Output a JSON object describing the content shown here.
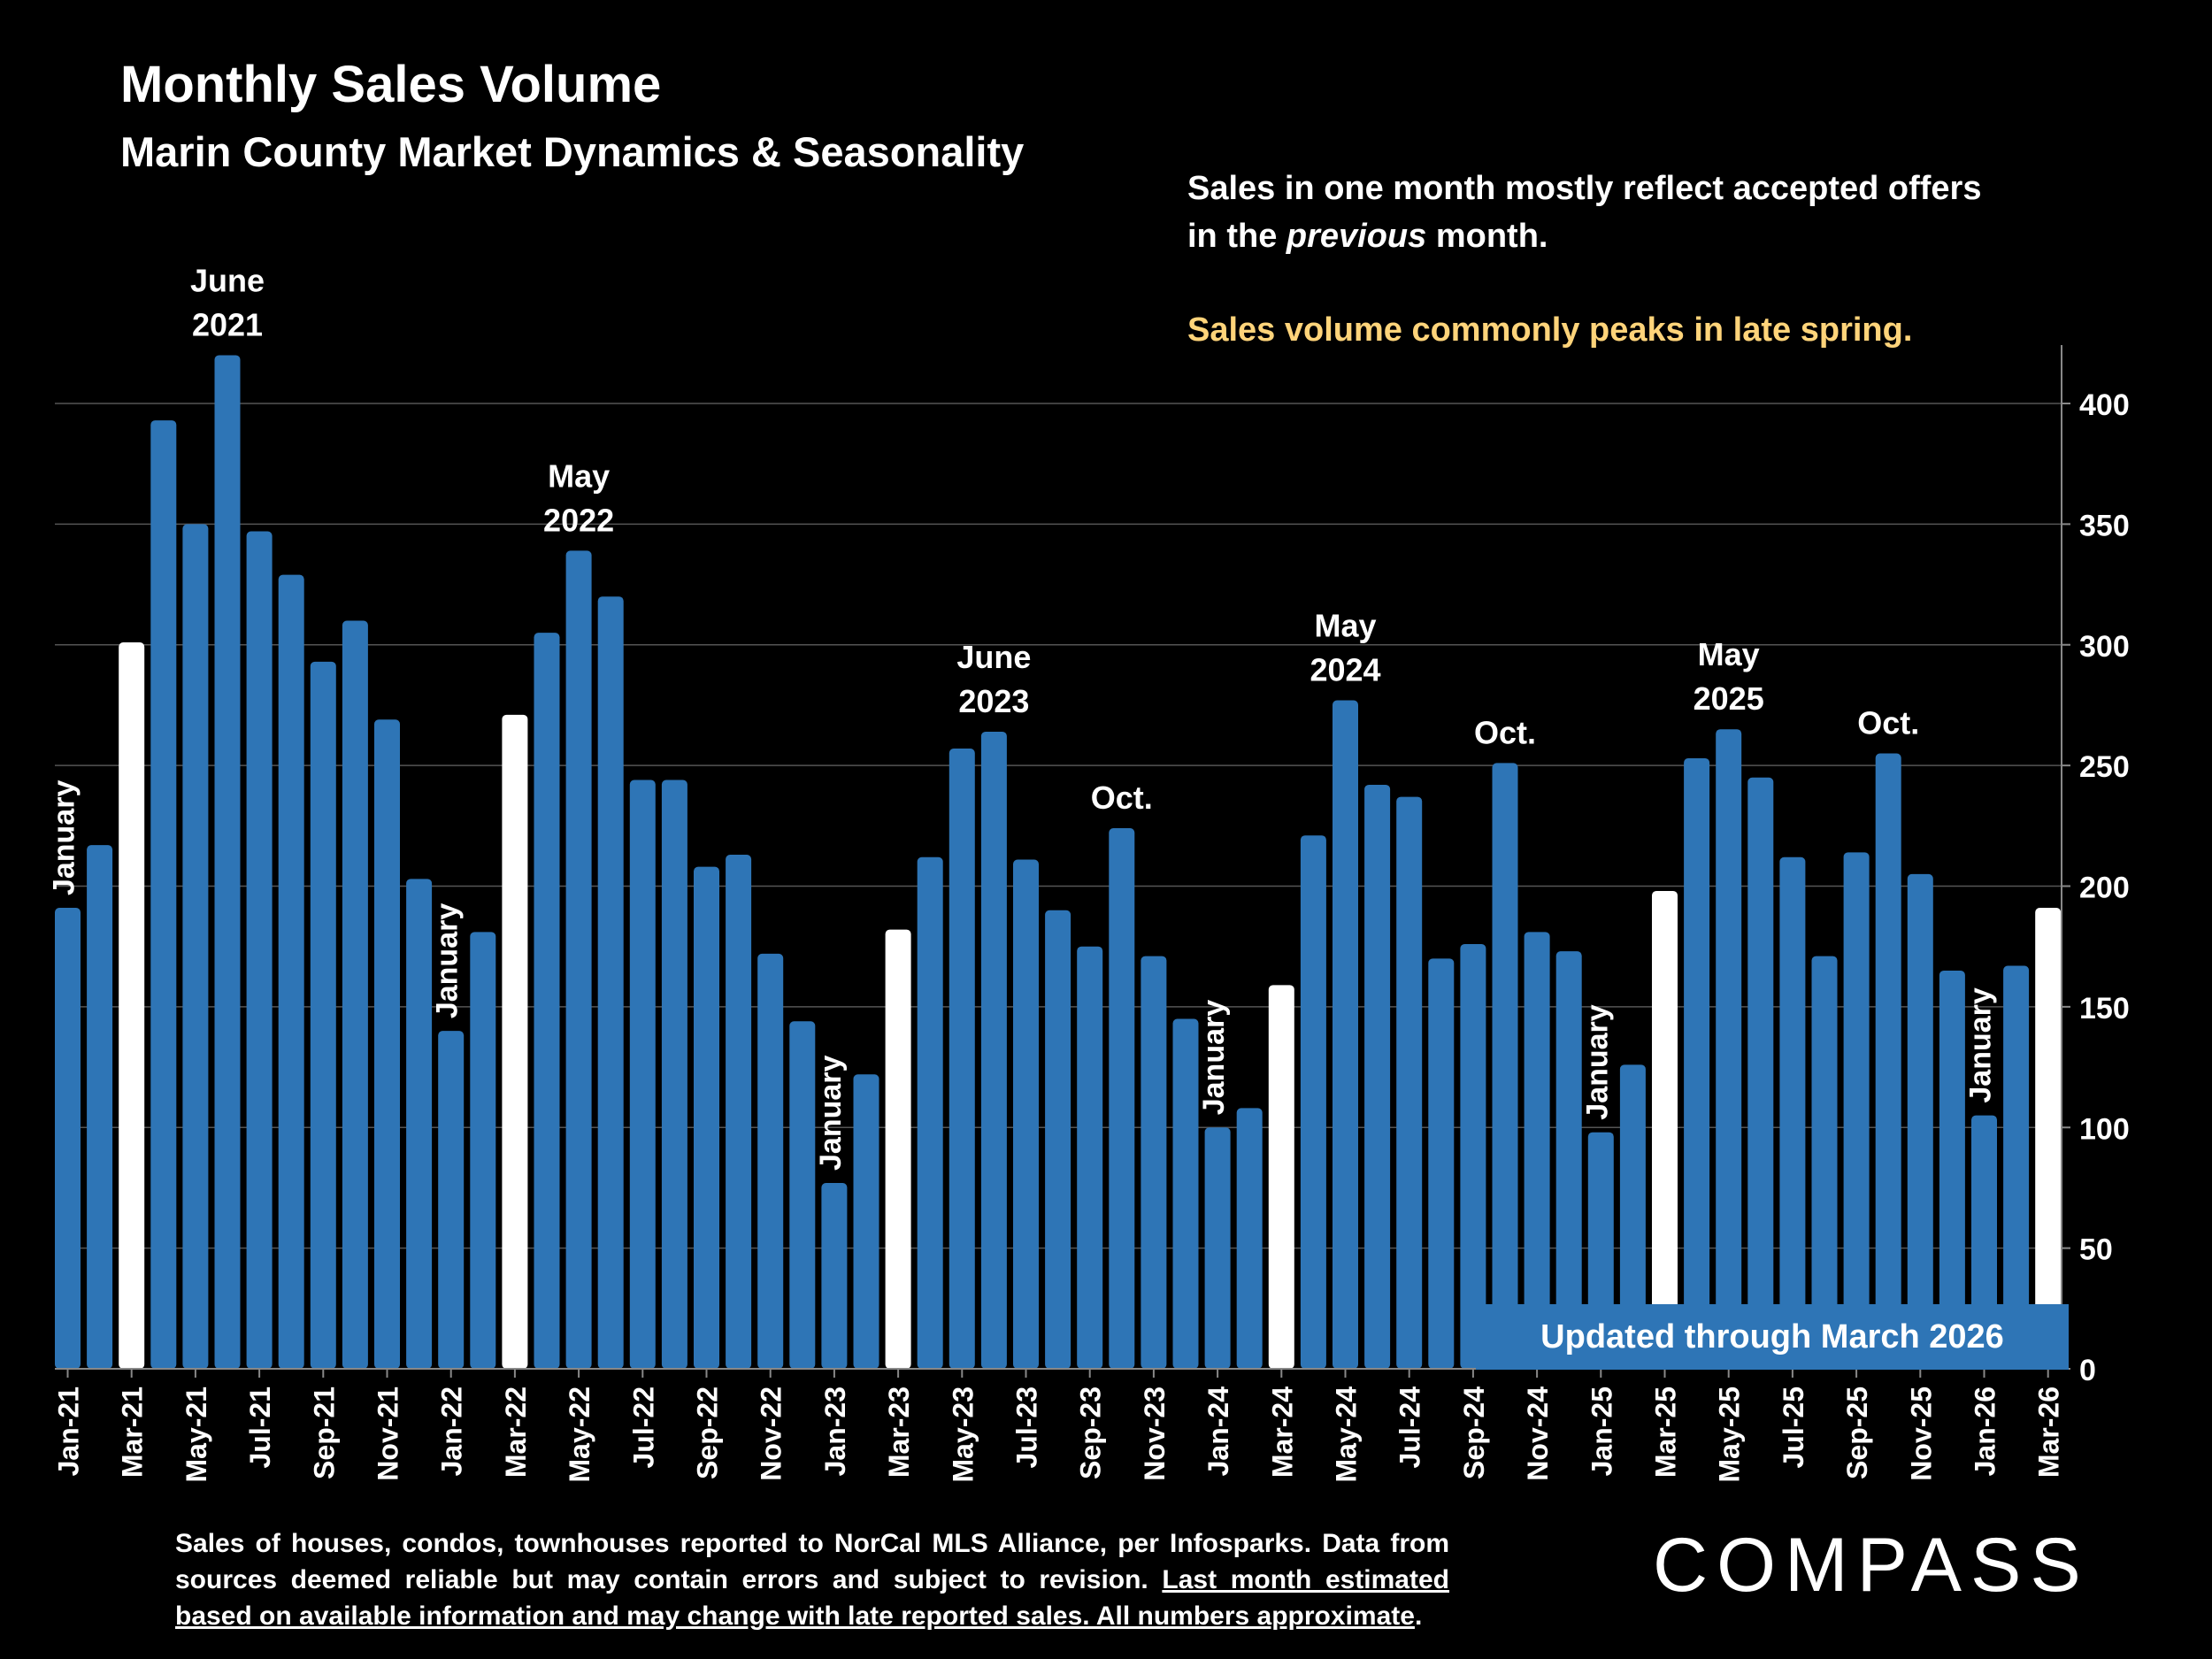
{
  "header": {
    "title": "Monthly Sales Volume",
    "subtitle": "Marin County Market Dynamics & Seasonality"
  },
  "notes": {
    "line1_part1": "Sales in one month mostly reflect accepted offers",
    "line1_part2_pre": "in the ",
    "line1_part2_em": "previous",
    "line1_part2_post": " month.",
    "highlight": "Sales volume commonly peaks in late spring."
  },
  "updated_label": "Updated through March 2026",
  "footnote": {
    "plain": "Sales of houses, condos, townhouses reported to NorCal MLS Alliance, per Infosparks. Data from sources deemed reliable but may contain errors and subject to revision. ",
    "underlined": "Last month estimated based on available information and may change with late reported sales. All numbers approximate",
    "end": "."
  },
  "logo_text": "COMPASS",
  "colors": {
    "bar": "#2e75b6",
    "highlight_bar": "#ffffff",
    "note_highlight": "#ffd47a",
    "background": "#000000"
  },
  "chart_data": {
    "type": "bar",
    "title": "Monthly Sales Volume",
    "ylim": [
      0,
      420
    ],
    "yticks": [
      0,
      50,
      100,
      150,
      200,
      250,
      300,
      350,
      400
    ],
    "grid": true,
    "months": [
      "Jan-21",
      "Feb-21",
      "Mar-21",
      "Apr-21",
      "May-21",
      "Jun-21",
      "Jul-21",
      "Aug-21",
      "Sep-21",
      "Oct-21",
      "Nov-21",
      "Dec-21",
      "Jan-22",
      "Feb-22",
      "Mar-22",
      "Apr-22",
      "May-22",
      "Jun-22",
      "Jul-22",
      "Aug-22",
      "Sep-22",
      "Oct-22",
      "Nov-22",
      "Dec-22",
      "Jan-23",
      "Feb-23",
      "Mar-23",
      "Apr-23",
      "May-23",
      "Jun-23",
      "Jul-23",
      "Aug-23",
      "Sep-23",
      "Oct-23",
      "Nov-23",
      "Dec-23",
      "Jan-24",
      "Feb-24",
      "Mar-24",
      "Apr-24",
      "May-24",
      "Jun-24",
      "Jul-24",
      "Aug-24",
      "Sep-24",
      "Oct-24",
      "Nov-24",
      "Dec-24",
      "Jan-25",
      "Feb-25",
      "Mar-25",
      "Apr-25",
      "May-25",
      "Jun-25",
      "Jul-25",
      "Aug-25",
      "Sep-25",
      "Oct-25",
      "Nov-25",
      "Dec-25",
      "Jan-26",
      "Feb-26",
      "Mar-26"
    ],
    "values": [
      191,
      217,
      301,
      393,
      350,
      420,
      347,
      329,
      293,
      310,
      269,
      203,
      140,
      181,
      271,
      305,
      339,
      320,
      244,
      244,
      208,
      213,
      172,
      144,
      77,
      122,
      182,
      212,
      257,
      264,
      211,
      190,
      175,
      224,
      171,
      145,
      100,
      108,
      159,
      221,
      277,
      242,
      237,
      170,
      176,
      251,
      181,
      173,
      98,
      126,
      198,
      253,
      265,
      245,
      212,
      171,
      214,
      255,
      205,
      165,
      105,
      167,
      191
    ],
    "highlighted_months": [
      "Mar-21",
      "Mar-22",
      "Mar-23",
      "Mar-24",
      "Mar-25",
      "Mar-26"
    ],
    "annotations": [
      {
        "month": "Jan-21",
        "text": "January",
        "orientation": "vertical"
      },
      {
        "month": "Jun-21",
        "text": "June 2021",
        "orientation": "horizontal"
      },
      {
        "month": "Jan-22",
        "text": "January",
        "orientation": "vertical"
      },
      {
        "month": "May-22",
        "text": "May 2022",
        "orientation": "horizontal"
      },
      {
        "month": "Jan-23",
        "text": "January",
        "orientation": "vertical"
      },
      {
        "month": "Jun-23",
        "text": "June 2023",
        "orientation": "horizontal"
      },
      {
        "month": "Oct-23",
        "text": "Oct.",
        "orientation": "horizontal"
      },
      {
        "month": "Jan-24",
        "text": "January",
        "orientation": "vertical"
      },
      {
        "month": "May-24",
        "text": "May 2024",
        "orientation": "horizontal"
      },
      {
        "month": "Oct-24",
        "text": "Oct.",
        "orientation": "horizontal"
      },
      {
        "month": "Jan-25",
        "text": "January",
        "orientation": "vertical"
      },
      {
        "month": "May-25",
        "text": "May 2025",
        "orientation": "horizontal"
      },
      {
        "month": "Oct-25",
        "text": "Oct.",
        "orientation": "horizontal"
      },
      {
        "month": "Jan-26",
        "text": "January",
        "orientation": "vertical"
      }
    ],
    "xtick_labels": [
      "Jan-21",
      "Mar-21",
      "May-21",
      "Jul-21",
      "Sep-21",
      "Nov-21",
      "Jan-22",
      "Mar-22",
      "May-22",
      "Jul-22",
      "Sep-22",
      "Nov-22",
      "Jan-23",
      "Mar-23",
      "May-23",
      "Jul-23",
      "Sep-23",
      "Nov-23",
      "Jan-24",
      "Mar-24",
      "May-24",
      "Jul-24",
      "Sep-24",
      "Nov-24",
      "Jan-25",
      "Mar-25",
      "May-25",
      "Jul-25",
      "Sep-25",
      "Nov-25",
      "Jan-26",
      "Mar-26"
    ]
  }
}
